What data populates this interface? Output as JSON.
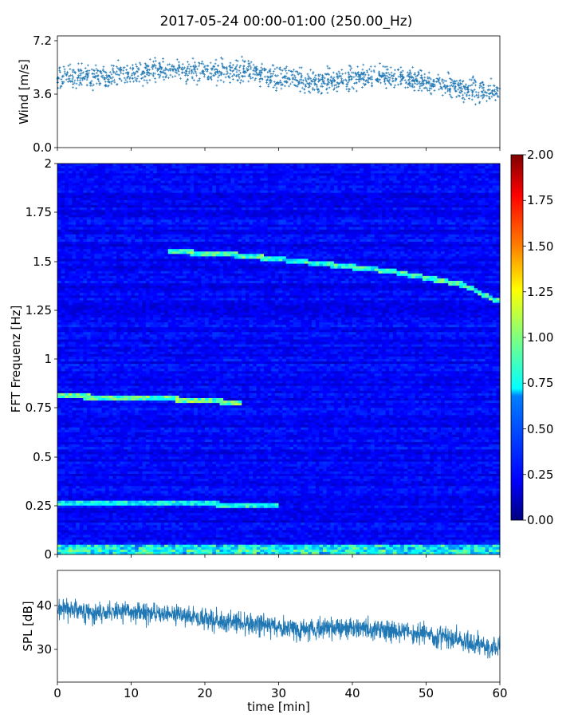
{
  "title": "2017-05-24 00:00-01:00 (250.00_Hz)",
  "colors": {
    "series": "#1f77b4",
    "axis": "#000000",
    "colormap": [
      "#00007f",
      "#0000ff",
      "#007fff",
      "#00ffff",
      "#7fff7f",
      "#ffff00",
      "#ff7f00",
      "#ff0000",
      "#7f0000"
    ]
  },
  "chart_data": [
    {
      "id": "wind",
      "type": "scatter",
      "ylabel": "Wind [m/s]",
      "xlim": [
        0,
        60
      ],
      "ylim": [
        0,
        7.2
      ],
      "yticks": [
        "0.0",
        "3.6",
        "7.2"
      ],
      "marker": "+",
      "trend": {
        "x": [
          0,
          5,
          10,
          15,
          20,
          25,
          30,
          35,
          40,
          45,
          50,
          55,
          60
        ],
        "y": [
          4.5,
          4.6,
          4.8,
          5.0,
          4.8,
          5.0,
          4.5,
          4.2,
          4.5,
          4.6,
          4.2,
          3.8,
          3.6
        ]
      },
      "spread": 0.8
    },
    {
      "id": "spectrogram",
      "type": "heatmap",
      "ylabel": "FFT Frequenz [Hz]",
      "xlim": [
        0,
        60
      ],
      "ylim": [
        0,
        2
      ],
      "yticks": [
        "0",
        "0.25",
        "0.5",
        "0.75",
        "1",
        "1.25",
        "1.5",
        "1.75",
        "2"
      ],
      "background_level": 0.2,
      "ridges": [
        {
          "x": [
            0,
            10,
            20,
            25
          ],
          "y": [
            0.81,
            0.8,
            0.79,
            0.77
          ],
          "level": 0.8
        },
        {
          "x": [
            15,
            25,
            35,
            45,
            55,
            60
          ],
          "y": [
            1.55,
            1.53,
            1.49,
            1.45,
            1.38,
            1.29
          ],
          "level": 0.7
        },
        {
          "x": [
            0,
            10,
            20,
            25,
            30
          ],
          "y": [
            0.26,
            0.26,
            0.26,
            0.25,
            0.25
          ],
          "level": 0.6
        }
      ],
      "colorbar": {
        "range": [
          0,
          2
        ],
        "ticks": [
          "0.00",
          "0.25",
          "0.50",
          "0.75",
          "1.00",
          "1.25",
          "1.50",
          "1.75",
          "2.00"
        ]
      }
    },
    {
      "id": "spl",
      "type": "line",
      "ylabel": "SPL [dB]",
      "xlabel": "time [min]",
      "xlim": [
        0,
        60
      ],
      "ylim": [
        22.5,
        48
      ],
      "yticks": [
        "30",
        "40"
      ],
      "xticks": [
        "0",
        "10",
        "20",
        "30",
        "40",
        "50",
        "60"
      ],
      "trend": {
        "x": [
          0,
          5,
          10,
          15,
          20,
          25,
          30,
          35,
          40,
          45,
          50,
          55,
          60
        ],
        "y": [
          39.5,
          38.5,
          38.5,
          38,
          37,
          36,
          35,
          34.5,
          35,
          34,
          33.5,
          32,
          30
        ]
      },
      "spread": 3
    }
  ]
}
